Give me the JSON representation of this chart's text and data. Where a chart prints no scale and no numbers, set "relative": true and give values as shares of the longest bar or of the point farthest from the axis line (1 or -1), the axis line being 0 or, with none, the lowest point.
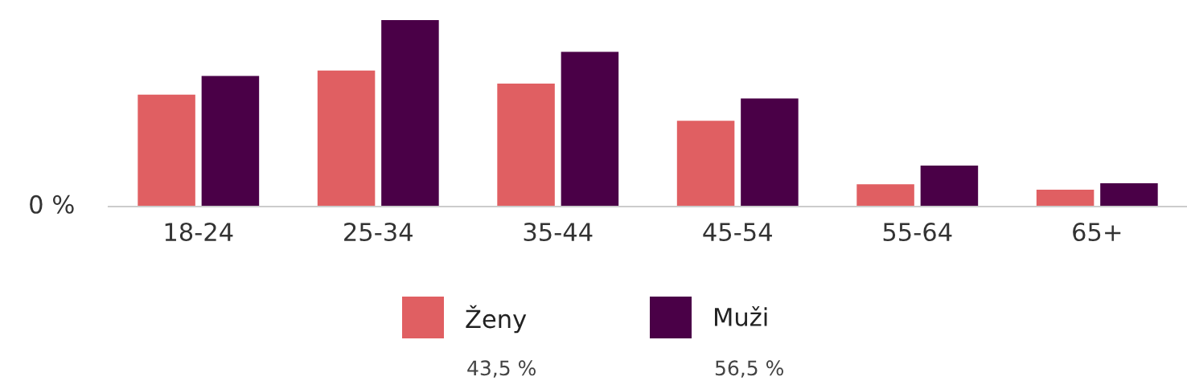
{
  "chart_data": {
    "type": "bar",
    "relative": true,
    "categories": [
      "18-24",
      "25-34",
      "35-44",
      "45-54",
      "55-64",
      "65+"
    ],
    "series": [
      {
        "name": "Ženy",
        "color": "#e05f62",
        "values": [
          0.6,
          0.73,
          0.66,
          0.46,
          0.12,
          0.09
        ]
      },
      {
        "name": "Muži",
        "color": "#4a0047",
        "values": [
          0.7,
          1.0,
          0.83,
          0.58,
          0.22,
          0.125
        ]
      }
    ],
    "annotations": [
      "0 %",
      "43,5 %",
      "56,5 %"
    ],
    "legend": "bottom",
    "grid": false
  }
}
